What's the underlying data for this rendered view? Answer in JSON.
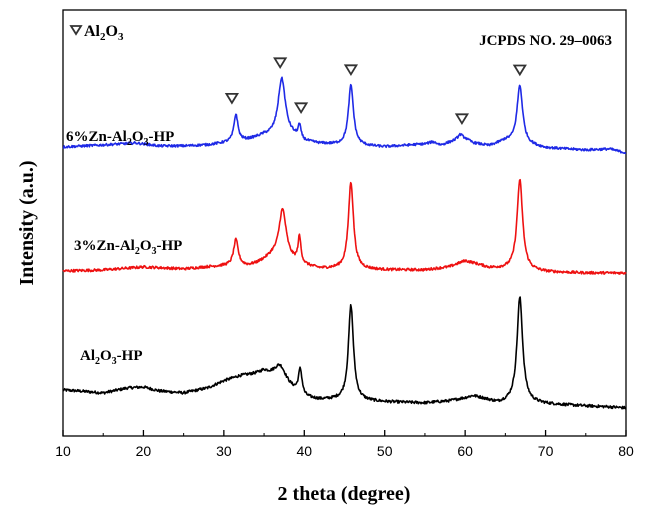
{
  "chart_data": {
    "type": "line",
    "xlabel": "2 theta (degree)",
    "ylabel": "Intensity (a.u.)",
    "xlim": [
      10,
      80
    ],
    "xticks": [
      10,
      20,
      30,
      40,
      50,
      60,
      70,
      80
    ],
    "yticks": "none",
    "grid": false,
    "legend": {
      "marker": "open inverted triangle",
      "label_main": "Al",
      "label_sub": "2",
      "label_main2": "O",
      "label_sub2": "3",
      "placement": "top-left"
    },
    "reference_label": "JCPDS NO. 29–0063",
    "series": [
      {
        "name_parts": [
          "Al",
          "2",
          "O",
          "3",
          "-HP"
        ],
        "color": "#000000",
        "offset": 0,
        "baseline": [
          [
            10,
            20
          ],
          [
            12,
            19
          ],
          [
            15,
            17
          ],
          [
            18,
            22
          ],
          [
            20,
            23
          ],
          [
            22,
            19
          ],
          [
            25,
            17
          ],
          [
            28,
            22
          ],
          [
            30,
            29
          ],
          [
            32,
            34
          ],
          [
            34,
            36
          ],
          [
            35,
            38
          ],
          [
            40,
            12
          ],
          [
            42,
            10
          ],
          [
            44,
            10
          ],
          [
            50,
            8
          ],
          [
            55,
            7
          ],
          [
            58,
            9
          ],
          [
            60,
            12
          ],
          [
            61,
            14
          ],
          [
            62,
            12
          ],
          [
            64,
            7
          ],
          [
            66,
            8
          ],
          [
            70,
            6
          ],
          [
            75,
            4
          ],
          [
            78,
            3
          ],
          [
            80,
            2
          ]
        ],
        "peaks": [
          [
            37.0,
            17,
            0.9
          ],
          [
            39.5,
            25,
            0.28
          ],
          [
            45.8,
            95,
            0.38
          ],
          [
            66.8,
            105,
            0.42
          ]
        ],
        "noise": 1.4
      },
      {
        "name_parts": [
          "3%Zn-Al",
          "2",
          "O",
          "3",
          "-HP"
        ],
        "color": "#ee1111",
        "offset": 135,
        "baseline": [
          [
            10,
            4
          ],
          [
            15,
            5
          ],
          [
            20,
            8
          ],
          [
            25,
            6
          ],
          [
            28,
            8
          ],
          [
            30,
            9
          ],
          [
            33,
            9
          ],
          [
            34,
            11
          ],
          [
            36,
            18
          ],
          [
            38.5,
            13
          ],
          [
            40,
            9
          ],
          [
            42,
            6
          ],
          [
            44,
            6
          ],
          [
            50,
            5
          ],
          [
            55,
            5
          ],
          [
            58,
            8
          ],
          [
            60,
            14
          ],
          [
            61,
            12
          ],
          [
            63,
            7
          ],
          [
            65,
            6
          ],
          [
            70,
            3
          ],
          [
            75,
            2
          ],
          [
            78,
            2
          ],
          [
            80,
            2
          ]
        ],
        "peaks": [
          [
            31.5,
            26,
            0.35
          ],
          [
            37.3,
            50,
            0.55
          ],
          [
            39.4,
            26,
            0.22
          ],
          [
            45.8,
            87,
            0.38
          ],
          [
            66.8,
            90,
            0.42
          ]
        ],
        "noise": 1.3
      },
      {
        "name_parts": [
          "6%Zn-Al",
          "2",
          "O",
          "3",
          "-HP"
        ],
        "color": "#1f2ae6",
        "offset": 255,
        "baseline": [
          [
            10,
            8
          ],
          [
            15,
            10
          ],
          [
            19,
            12
          ],
          [
            22,
            9
          ],
          [
            25,
            9
          ],
          [
            28,
            10
          ],
          [
            30,
            12
          ],
          [
            33,
            15
          ],
          [
            35,
            19
          ],
          [
            38.5,
            18
          ],
          [
            40,
            13
          ],
          [
            42,
            11
          ],
          [
            44,
            10
          ],
          [
            50,
            8
          ],
          [
            55,
            11
          ],
          [
            56,
            13
          ],
          [
            57,
            10
          ],
          [
            59,
            15
          ],
          [
            60,
            16
          ],
          [
            61,
            12
          ],
          [
            63,
            9
          ],
          [
            65,
            14
          ],
          [
            70,
            7
          ],
          [
            75,
            5
          ],
          [
            78,
            6
          ],
          [
            80,
            2
          ]
        ],
        "peaks": [
          [
            31.5,
            27,
            0.3
          ],
          [
            37.2,
            58,
            0.55
          ],
          [
            39.4,
            13,
            0.22
          ],
          [
            45.8,
            60,
            0.38
          ],
          [
            59.4,
            5,
            0.35
          ],
          [
            66.8,
            58,
            0.42
          ]
        ],
        "noise": 1.2
      }
    ],
    "markers": [
      31.0,
      37.0,
      39.6,
      45.8,
      59.6,
      66.8
    ]
  }
}
